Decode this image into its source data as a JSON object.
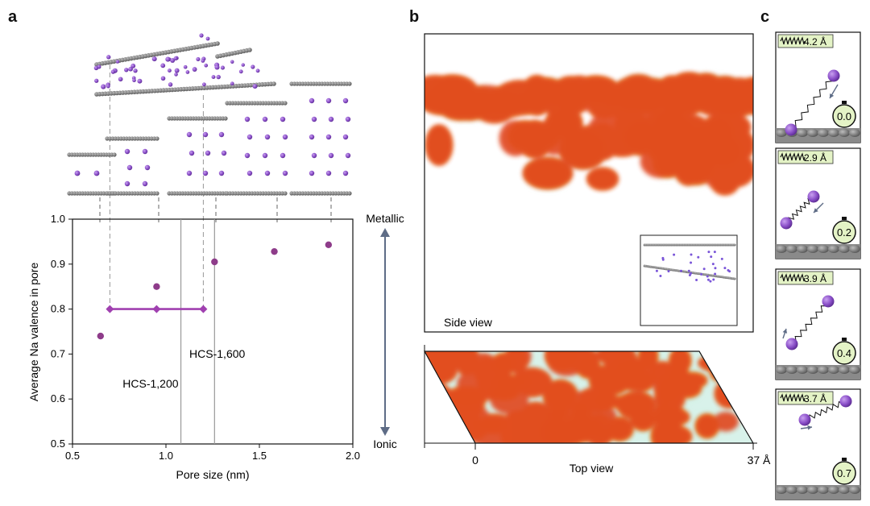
{
  "panel_letters": {
    "a": "a",
    "b": "b",
    "c": "c"
  },
  "colors": {
    "marker": "#8e3c8a",
    "purple_line": "#a040b0",
    "sodium": "#8a4fc8",
    "carbon": "#6f6f6f",
    "arrow": "#5e6c86",
    "timer_fill": "#e4f3c6",
    "spring_box": "#e4f3c6"
  },
  "chart_data": {
    "type": "scatter",
    "xlabel": "Pore size (nm)",
    "ylabel": "Average Na valence in pore",
    "xlim": [
      0.5,
      2.0
    ],
    "ylim": [
      0.5,
      1.0
    ],
    "xticks": [
      "0.5",
      "1.0",
      "1.5",
      "2.0"
    ],
    "yticks": [
      "0.5",
      "0.6",
      "0.7",
      "0.8",
      "0.9",
      "1.0"
    ],
    "points": [
      {
        "x": 0.65,
        "y": 0.74
      },
      {
        "x": 0.95,
        "y": 0.85
      },
      {
        "x": 1.26,
        "y": 0.905
      },
      {
        "x": 1.58,
        "y": 0.928
      },
      {
        "x": 1.87,
        "y": 0.943
      }
    ],
    "range_bar": {
      "y": 0.8,
      "x": [
        0.7,
        0.95,
        1.2
      ]
    },
    "vlines": [
      {
        "x": 1.08,
        "label": "HCS-1,200"
      },
      {
        "x": 1.26,
        "label": "HCS-1,600"
      }
    ],
    "right_axis": {
      "top": "Metallic",
      "bottom": "Ionic"
    }
  },
  "panel_b": {
    "side_view_label": "Side view",
    "top_view_label": "Top view",
    "axis_start": "0",
    "axis_end": "37 Å"
  },
  "panel_c": {
    "frames": [
      {
        "distance": "4.2 Å",
        "time": "0.0"
      },
      {
        "distance": "2.9 Å",
        "time": "0.2"
      },
      {
        "distance": "3.9 Å",
        "time": "0.4"
      },
      {
        "distance": "3.7 Å",
        "time": "0.7"
      }
    ]
  }
}
